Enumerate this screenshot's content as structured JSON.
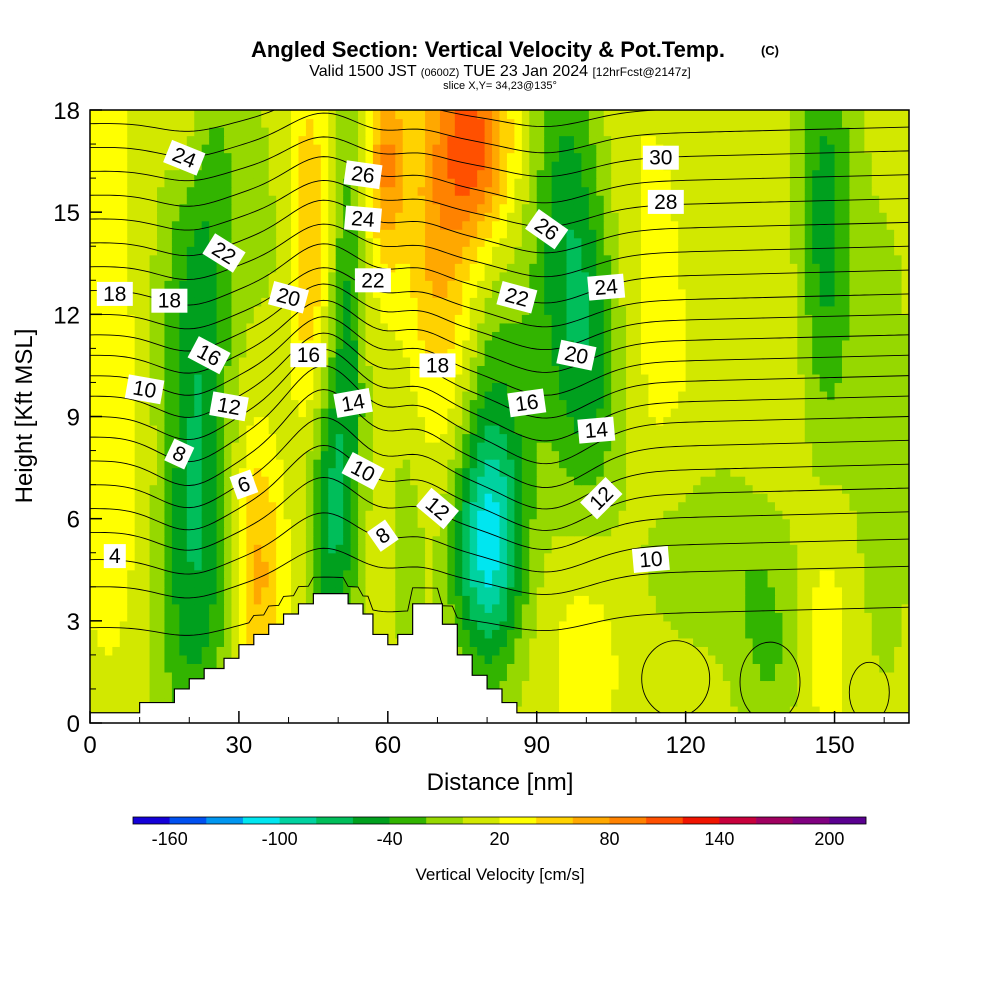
{
  "title": {
    "main": "Angled Section: Vertical Velocity & Pot.Temp.",
    "copyright": "(C)",
    "valid_prefix": "Valid 1500 JST",
    "valid_utc": "(0600Z)",
    "valid_date": "TUE 23 Jan 2024",
    "forecast": "[12hrFcst@2147z]",
    "slice": "slice X,Y= 34,23@135°"
  },
  "chart_data": {
    "type": "heatmap",
    "xlabel": "Distance [nm]",
    "ylabel": "Height [Kft MSL]",
    "xlim": [
      0,
      165
    ],
    "ylim": [
      0,
      18
    ],
    "x_ticks": [
      0,
      30,
      60,
      90,
      120,
      150
    ],
    "y_ticks": [
      0,
      3,
      6,
      9,
      12,
      15,
      18
    ],
    "shading_variable": "Vertical Velocity [cm/s]",
    "contour_variable": "Pot.Temp.",
    "colorbar": {
      "title": "Vertical Velocity [cm/s]",
      "labels": [
        "-160",
        "-100",
        "-40",
        "20",
        "80",
        "140",
        "200"
      ],
      "label_values": [
        -160,
        -100,
        -40,
        20,
        80,
        140,
        200
      ],
      "range": [
        -180,
        220
      ],
      "step": 20,
      "colors": [
        "#1400d8",
        "#0050f0",
        "#0096f0",
        "#00e6f0",
        "#00d2a0",
        "#00be5a",
        "#00a01e",
        "#32b400",
        "#96d800",
        "#d2e800",
        "#ffff00",
        "#ffd200",
        "#ffa800",
        "#ff8200",
        "#ff5000",
        "#f01400",
        "#c8003c",
        "#a00060",
        "#800080",
        "#5a0090"
      ]
    },
    "velocity_fields": [
      {
        "x": 4,
        "y": 15,
        "value": 15,
        "sx": 7,
        "sy": 5
      },
      {
        "x": 6,
        "y": 6,
        "value": 18,
        "sx": 7,
        "sy": 4
      },
      {
        "x": 16,
        "y": 12,
        "value": -18,
        "sx": 5,
        "sy": 5
      },
      {
        "x": 22,
        "y": 9,
        "value": -60,
        "sx": 4.5,
        "sy": 4.5
      },
      {
        "x": 20,
        "y": 3,
        "value": -38,
        "sx": 6,
        "sy": 3
      },
      {
        "x": 26,
        "y": 16,
        "value": -26,
        "sx": 5,
        "sy": 3
      },
      {
        "x": 19,
        "y": 17.5,
        "value": 22,
        "sx": 3,
        "sy": 1.5
      },
      {
        "x": 34,
        "y": 4.5,
        "value": 58,
        "sx": 3.5,
        "sy": 3
      },
      {
        "x": 38,
        "y": 13,
        "value": -12,
        "sx": 4,
        "sy": 5
      },
      {
        "x": 44,
        "y": 14,
        "value": 52,
        "sx": 3,
        "sy": 4
      },
      {
        "x": 48,
        "y": 6,
        "value": -65,
        "sx": 3,
        "sy": 3
      },
      {
        "x": 52,
        "y": 11,
        "value": -55,
        "sx": 2.5,
        "sy": 5
      },
      {
        "x": 58,
        "y": 15.5,
        "value": 12,
        "sx": 3,
        "sy": 3
      },
      {
        "x": 60,
        "y": 16.5,
        "value": 60,
        "sx": 2.5,
        "sy": 2
      },
      {
        "x": 64,
        "y": 6,
        "value": -20,
        "sx": 3,
        "sy": 3.5
      },
      {
        "x": 70,
        "y": 14.5,
        "value": 55,
        "sx": 5,
        "sy": 4.5
      },
      {
        "x": 78,
        "y": 17,
        "value": 90,
        "sx": 5,
        "sy": 2
      },
      {
        "x": 80,
        "y": 5,
        "value": -110,
        "sx": 5,
        "sy": 2.5
      },
      {
        "x": 82,
        "y": 9.5,
        "value": -40,
        "sx": 5,
        "sy": 3
      },
      {
        "x": 76,
        "y": 11,
        "value": 5,
        "sx": 3,
        "sy": 2.5
      },
      {
        "x": 96,
        "y": 14,
        "value": -65,
        "sx": 5,
        "sy": 4.5
      },
      {
        "x": 102,
        "y": 10.5,
        "value": -42,
        "sx": 4,
        "sy": 3
      },
      {
        "x": 100,
        "y": 2.5,
        "value": 22,
        "sx": 6,
        "sy": 2.5
      },
      {
        "x": 112,
        "y": 15,
        "value": 12,
        "sx": 7,
        "sy": 4
      },
      {
        "x": 116,
        "y": 9,
        "value": 10,
        "sx": 6,
        "sy": 3
      },
      {
        "x": 126,
        "y": 5,
        "value": -26,
        "sx": 14,
        "sy": 2
      },
      {
        "x": 137,
        "y": 2,
        "value": -30,
        "sx": 5,
        "sy": 2
      },
      {
        "x": 140,
        "y": 10,
        "value": 12,
        "sx": 6,
        "sy": 4
      },
      {
        "x": 148,
        "y": 14.5,
        "value": -62,
        "sx": 4,
        "sy": 4.5
      },
      {
        "x": 148,
        "y": 3,
        "value": 28,
        "sx": 4,
        "sy": 2.5
      },
      {
        "x": 160,
        "y": 8,
        "value": -18,
        "sx": 5,
        "sy": 6
      }
    ],
    "terrain": [
      {
        "x": 0,
        "h": 0.3
      },
      {
        "x": 10,
        "h": 0.6
      },
      {
        "x": 17,
        "h": 1.0
      },
      {
        "x": 20,
        "h": 1.3
      },
      {
        "x": 23,
        "h": 1.6
      },
      {
        "x": 27,
        "h": 1.9
      },
      {
        "x": 30,
        "h": 2.3
      },
      {
        "x": 33,
        "h": 2.6
      },
      {
        "x": 36,
        "h": 2.9
      },
      {
        "x": 39,
        "h": 3.2
      },
      {
        "x": 42,
        "h": 3.5
      },
      {
        "x": 45,
        "h": 3.8
      },
      {
        "x": 48,
        "h": 3.8
      },
      {
        "x": 52,
        "h": 3.5
      },
      {
        "x": 55,
        "h": 3.2
      },
      {
        "x": 57,
        "h": 2.6
      },
      {
        "x": 60,
        "h": 2.3
      },
      {
        "x": 62,
        "h": 2.6
      },
      {
        "x": 65,
        "h": 3.5
      },
      {
        "x": 68,
        "h": 3.5
      },
      {
        "x": 71,
        "h": 2.9
      },
      {
        "x": 74,
        "h": 2.0
      },
      {
        "x": 77,
        "h": 1.4
      },
      {
        "x": 80,
        "h": 1.0
      },
      {
        "x": 83,
        "h": 0.6
      },
      {
        "x": 86,
        "h": 0.3
      },
      {
        "x": 165,
        "h": 0.3
      }
    ],
    "isentropes": [
      {
        "base": 2.8,
        "amp": 0.6
      },
      {
        "base": 4.0,
        "amp": 0.8
      },
      {
        "base": 4.8,
        "amp": 1.0
      },
      {
        "base": 5.6,
        "amp": 1.2
      },
      {
        "base": 6.3,
        "amp": 1.4
      },
      {
        "base": 7.0,
        "amp": 1.5
      },
      {
        "base": 7.7,
        "amp": 1.6
      },
      {
        "base": 8.4,
        "amp": 1.6
      },
      {
        "base": 9.0,
        "amp": 1.5
      },
      {
        "base": 9.6,
        "amp": 1.4
      },
      {
        "base": 10.2,
        "amp": 1.3
      },
      {
        "base": 10.8,
        "amp": 1.2
      },
      {
        "base": 11.4,
        "amp": 1.1
      },
      {
        "base": 12.0,
        "amp": 1.0
      },
      {
        "base": 12.7,
        "amp": 1.0
      },
      {
        "base": 13.4,
        "amp": 0.9
      },
      {
        "base": 14.1,
        "amp": 0.9
      },
      {
        "base": 14.8,
        "amp": 0.8
      },
      {
        "base": 15.5,
        "amp": 0.8
      },
      {
        "base": 16.2,
        "amp": 0.7
      },
      {
        "base": 16.9,
        "amp": 0.7
      },
      {
        "base": 17.6,
        "amp": 0.6
      }
    ],
    "contour_labels": [
      {
        "text": "24",
        "x": 19,
        "y": 16.6,
        "angle": 22
      },
      {
        "text": "22",
        "x": 27,
        "y": 13.8,
        "angle": 32
      },
      {
        "text": "18",
        "x": 5,
        "y": 12.6,
        "angle": 0
      },
      {
        "text": "18",
        "x": 16,
        "y": 12.4,
        "angle": 0
      },
      {
        "text": "16",
        "x": 24,
        "y": 10.8,
        "angle": 28
      },
      {
        "text": "10",
        "x": 11,
        "y": 9.8,
        "angle": 10
      },
      {
        "text": "12",
        "x": 28,
        "y": 9.3,
        "angle": 10
      },
      {
        "text": "8",
        "x": 18,
        "y": 7.9,
        "angle": 25
      },
      {
        "text": "6",
        "x": 31,
        "y": 7.0,
        "angle": -20
      },
      {
        "text": "4",
        "x": 5,
        "y": 4.9,
        "angle": 0
      },
      {
        "text": "20",
        "x": 40,
        "y": 12.5,
        "angle": 15
      },
      {
        "text": "16",
        "x": 44,
        "y": 10.8,
        "angle": 0
      },
      {
        "text": "14",
        "x": 53,
        "y": 9.4,
        "angle": -10
      },
      {
        "text": "10",
        "x": 55,
        "y": 7.4,
        "angle": 28
      },
      {
        "text": "8",
        "x": 59,
        "y": 5.5,
        "angle": -35
      },
      {
        "text": "26",
        "x": 55,
        "y": 16.1,
        "angle": 8
      },
      {
        "text": "24",
        "x": 55,
        "y": 14.8,
        "angle": 5
      },
      {
        "text": "22",
        "x": 57,
        "y": 13.0,
        "angle": 0
      },
      {
        "text": "18",
        "x": 70,
        "y": 10.5,
        "angle": 0
      },
      {
        "text": "12",
        "x": 70,
        "y": 6.3,
        "angle": 40
      },
      {
        "text": "22",
        "x": 86,
        "y": 12.5,
        "angle": 15
      },
      {
        "text": "26",
        "x": 92,
        "y": 14.5,
        "angle": 35
      },
      {
        "text": "16",
        "x": 88,
        "y": 9.4,
        "angle": -8
      },
      {
        "text": "20",
        "x": 98,
        "y": 10.8,
        "angle": 12
      },
      {
        "text": "14",
        "x": 102,
        "y": 8.6,
        "angle": -5
      },
      {
        "text": "12",
        "x": 103,
        "y": 6.6,
        "angle": -45
      },
      {
        "text": "24",
        "x": 104,
        "y": 12.8,
        "angle": -5
      },
      {
        "text": "10",
        "x": 113,
        "y": 4.8,
        "angle": -5
      },
      {
        "text": "28",
        "x": 116,
        "y": 15.3,
        "angle": 0
      },
      {
        "text": "30",
        "x": 115,
        "y": 16.6,
        "angle": 0
      }
    ]
  }
}
